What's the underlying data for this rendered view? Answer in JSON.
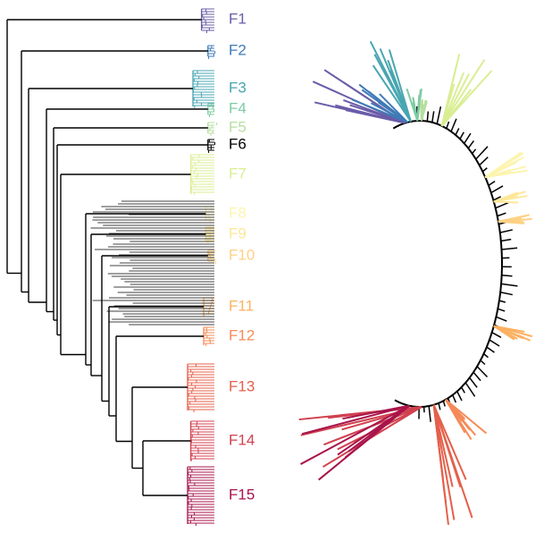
{
  "labels": [
    {
      "name": "F1",
      "color": "#6a5ca8"
    },
    {
      "name": "F2",
      "color": "#3f7bb7"
    },
    {
      "name": "F3",
      "color": "#48a6b1"
    },
    {
      "name": "F4",
      "color": "#7fcba4"
    },
    {
      "name": "F5",
      "color": "#b5df9f"
    },
    {
      "name": "F6",
      "color": "#000000"
    },
    {
      "name": "F7",
      "color": "#d9ee93"
    },
    {
      "name": "F8",
      "color": "#fdf4ad"
    },
    {
      "name": "F9",
      "color": "#fee797"
    },
    {
      "name": "F10",
      "color": "#fed185"
    },
    {
      "name": "F11",
      "color": "#fcb061"
    },
    {
      "name": "F12",
      "color": "#f58b58"
    },
    {
      "name": "F13",
      "color": "#e4604b"
    },
    {
      "name": "F14",
      "color": "#d0414f"
    },
    {
      "name": "F15",
      "color": "#a8144b"
    }
  ]
}
